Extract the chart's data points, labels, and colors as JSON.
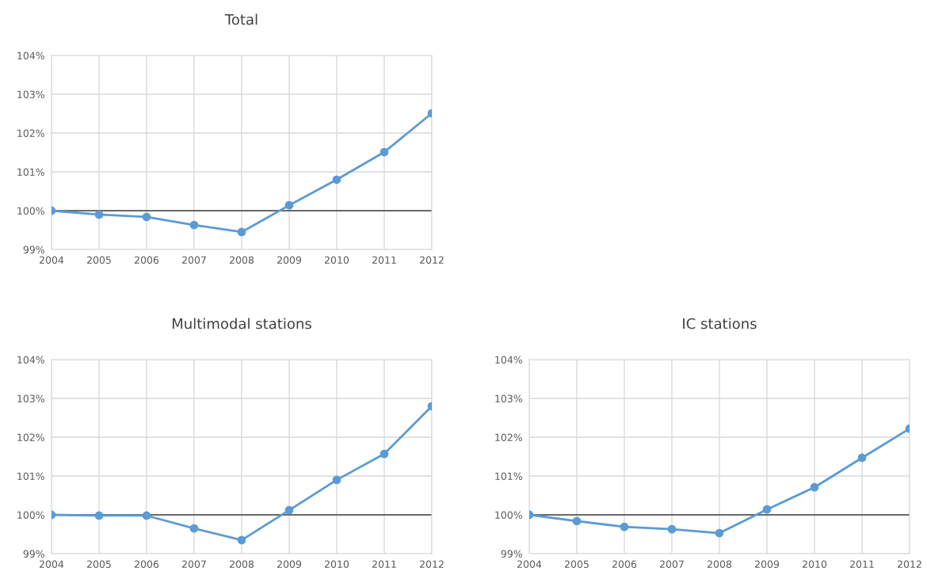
{
  "chart_data": [
    {
      "type": "line",
      "title": "Total",
      "categories": [
        "2004",
        "2005",
        "2006",
        "2007",
        "2008",
        "2009",
        "2010",
        "2011",
        "2012"
      ],
      "series": [
        {
          "color": "#5b9bd5",
          "values": [
            100,
            99.9,
            99.84,
            99.63,
            99.45,
            100.14,
            100.8,
            101.51,
            102.51
          ]
        }
      ],
      "ylim": [
        99,
        104
      ],
      "yticks": [
        {
          "value": 99,
          "label": "99%"
        },
        {
          "value": 100,
          "label": "100%"
        },
        {
          "value": 101,
          "label": "101%"
        },
        {
          "value": 102,
          "label": "102%"
        },
        {
          "value": 103,
          "label": "103%"
        },
        {
          "value": 104,
          "label": "104%"
        }
      ],
      "ref_lines": [
        {
          "axis": "y",
          "value": 100,
          "color": "#404040"
        }
      ],
      "grid": true,
      "marker": "circle",
      "line_style": "solid"
    },
    {
      "type": "line",
      "title": "Multimodal stations",
      "categories": [
        "2004",
        "2005",
        "2006",
        "2007",
        "2008",
        "2009",
        "2010",
        "2011",
        "2012"
      ],
      "series": [
        {
          "color": "#5b9bd5",
          "values": [
            100,
            99.98,
            99.98,
            99.65,
            99.35,
            100.12,
            100.9,
            101.57,
            102.8
          ]
        }
      ],
      "ylim": [
        99,
        104
      ],
      "yticks": [
        {
          "value": 99,
          "label": "99%"
        },
        {
          "value": 100,
          "label": "100%"
        },
        {
          "value": 101,
          "label": "101%"
        },
        {
          "value": 102,
          "label": "102%"
        },
        {
          "value": 103,
          "label": "103%"
        },
        {
          "value": 104,
          "label": "104%"
        }
      ],
      "ref_lines": [
        {
          "axis": "y",
          "value": 100,
          "color": "#404040"
        }
      ],
      "grid": true,
      "marker": "circle",
      "line_style": "solid"
    },
    {
      "type": "line",
      "title": "IC stations",
      "categories": [
        "2004",
        "2005",
        "2006",
        "2007",
        "2008",
        "2009",
        "2010",
        "2011",
        "2012"
      ],
      "series": [
        {
          "color": "#5b9bd5",
          "values": [
            100,
            99.84,
            99.69,
            99.63,
            99.53,
            100.14,
            100.71,
            101.47,
            102.22
          ]
        }
      ],
      "ylim": [
        99,
        104
      ],
      "yticks": [
        {
          "value": 99,
          "label": "99%"
        },
        {
          "value": 100,
          "label": "100%"
        },
        {
          "value": 101,
          "label": "101%"
        },
        {
          "value": 102,
          "label": "102%"
        },
        {
          "value": 103,
          "label": "103%"
        },
        {
          "value": 104,
          "label": "104%"
        }
      ],
      "ref_lines": [
        {
          "axis": "y",
          "value": 100,
          "color": "#404040"
        }
      ],
      "grid": true,
      "marker": "circle",
      "line_style": "solid"
    }
  ]
}
